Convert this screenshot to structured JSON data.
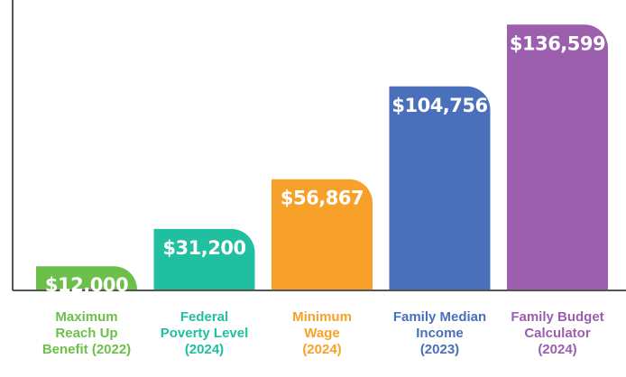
{
  "chart_data": {
    "type": "bar",
    "categories": [
      "Maximum\nReach Up\nBenefit (2022)",
      "Federal\nPoverty Level\n(2024)",
      "Minimum\nWage\n(2024)",
      "Family Median\nIncome\n(2023)",
      "Family Budget\nCalculator\n(2024)"
    ],
    "values": [
      12000,
      31200,
      56867,
      104756,
      136599
    ],
    "value_labels": [
      "$12,000",
      "$31,200",
      "$56,867",
      "$104,756",
      "$136,599"
    ],
    "colors": [
      "#6cc04a",
      "#1fbf9f",
      "#f7a12a",
      "#4a6fbb",
      "#9b5fad"
    ],
    "ylim": [
      0,
      140000
    ]
  }
}
